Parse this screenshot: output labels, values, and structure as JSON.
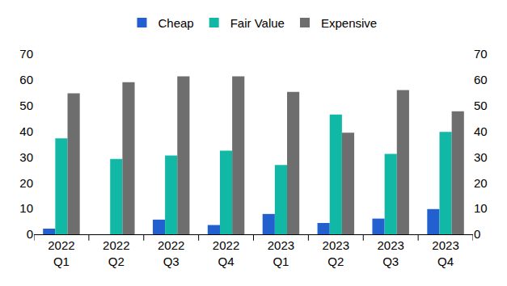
{
  "chart_data": {
    "type": "bar",
    "categories": [
      "2022 Q1",
      "2022 Q2",
      "2022 Q3",
      "2022 Q4",
      "2023 Q1",
      "2023 Q2",
      "2023 Q3",
      "2023 Q4"
    ],
    "series": [
      {
        "name": "Cheap",
        "color": "#2260d0",
        "values": [
          2.2,
          0,
          5.7,
          3.6,
          7.9,
          4.4,
          6.1,
          9.8
        ]
      },
      {
        "name": "Fair Value",
        "color": "#12b8a6",
        "values": [
          37.3,
          29.3,
          30.6,
          32.5,
          26.9,
          46.5,
          31.2,
          39.8
        ]
      },
      {
        "name": "Expensive",
        "color": "#6e6e6e",
        "values": [
          54.8,
          59.1,
          61.4,
          61.4,
          55.3,
          39.5,
          56.0,
          47.8
        ]
      }
    ],
    "ylim": [
      0,
      70
    ],
    "yticks": [
      0,
      10,
      20,
      30,
      40,
      50,
      60,
      70
    ],
    "y2lim": [
      0,
      70
    ],
    "y2ticks": [
      0,
      10,
      20,
      30,
      40,
      50,
      60,
      70
    ],
    "grid": false,
    "legend": "top"
  }
}
